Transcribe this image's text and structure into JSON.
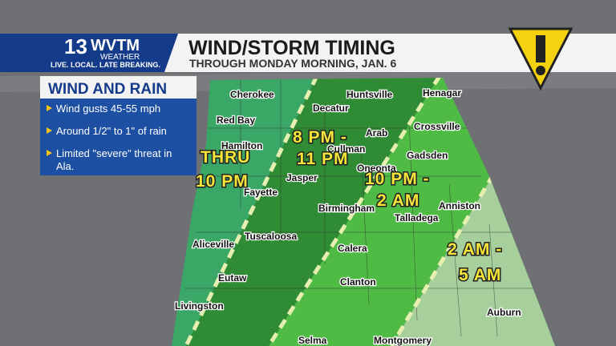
{
  "header": {
    "logo_number": "13",
    "logo_call": "WVTM",
    "logo_sub": "WEATHER",
    "tagline": "LIVE. LOCAL. LATE BREAKING.",
    "title": "WIND/STORM TIMING",
    "subtitle": "THROUGH MONDAY MORNING, JAN. 6"
  },
  "panel": {
    "title": "WIND AND RAIN",
    "bullets": [
      "Wind gusts 45-55 mph",
      "Around 1/2\" to 1\" of rain",
      "Limited \"severe\" threat in Ala."
    ]
  },
  "zones": [
    {
      "lines": [
        "THRU",
        "10 PM"
      ]
    },
    {
      "lines": [
        "8 PM -",
        "11 PM"
      ]
    },
    {
      "lines": [
        "10 PM -",
        "2 AM"
      ]
    },
    {
      "lines": [
        "2 AM -",
        "5 AM"
      ]
    }
  ],
  "cities": [
    "Cherokee",
    "Huntsville",
    "Henagar",
    "Decatur",
    "Red Bay",
    "Arab",
    "Crossville",
    "Hamilton",
    "Cullman",
    "Gadsden",
    "Oneonta",
    "Jasper",
    "Fayette",
    "Birmingham",
    "Anniston",
    "Talladega",
    "Aliceville",
    "Tuscaloosa",
    "Calera",
    "Eutaw",
    "Clanton",
    "Livingston",
    "Auburn",
    "Selma",
    "Montgomery"
  ]
}
